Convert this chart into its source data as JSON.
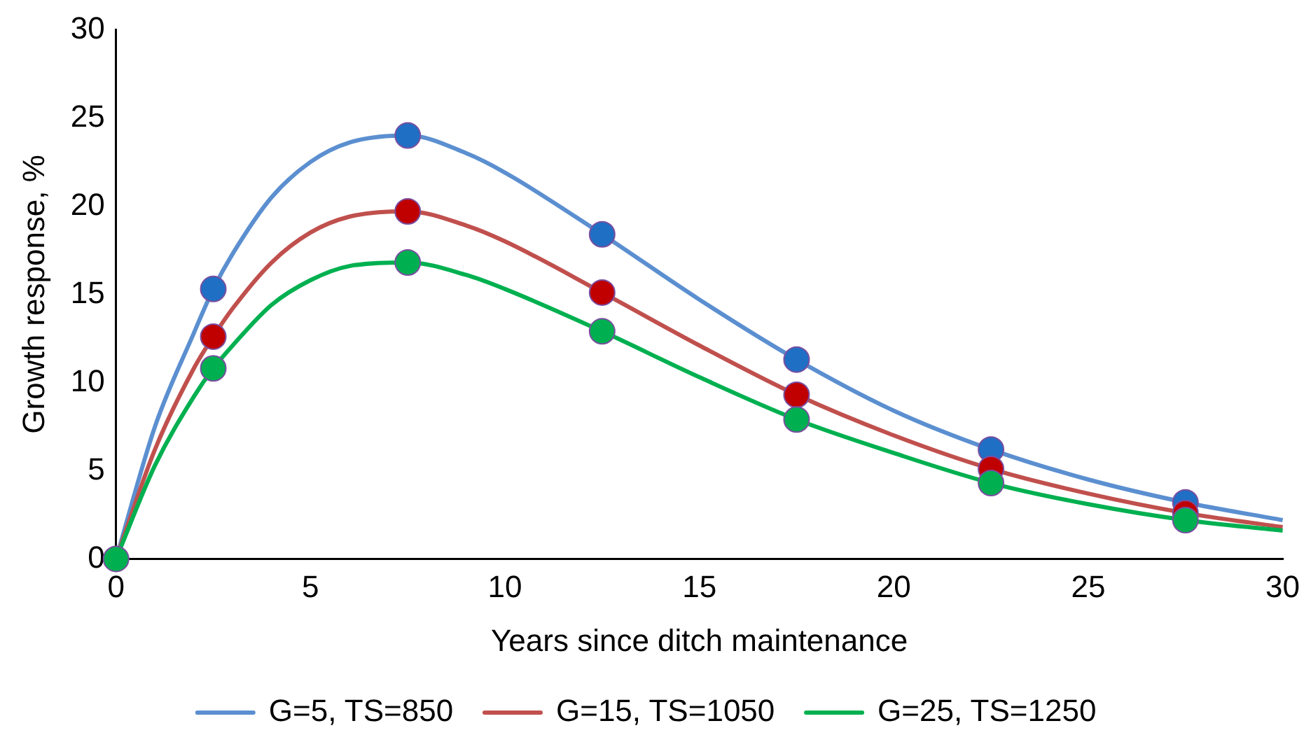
{
  "chart_data": {
    "type": "line",
    "xlabel": "Years since ditch maintenance",
    "ylabel": "Growth response, %",
    "xlim": [
      0,
      30
    ],
    "xticks": [
      0,
      5,
      10,
      15,
      20,
      25,
      30
    ],
    "ylim": [
      0,
      30
    ],
    "yticks": [
      0,
      5,
      10,
      15,
      20,
      25,
      30
    ],
    "grid": false,
    "legend": "bottom",
    "line_style": "solid",
    "series": [
      {
        "name": "G=5, TS=850",
        "color": "#5b8fd0",
        "marker": "none",
        "x": [
          0,
          1,
          2,
          2.5,
          3,
          4,
          5,
          6,
          7.5,
          9,
          10,
          12.5,
          15,
          17.5,
          20,
          22.5,
          25,
          27.5,
          30
        ],
        "values": [
          0,
          7.5,
          12.8,
          15.3,
          17.3,
          20.5,
          22.5,
          23.6,
          24.0,
          23.0,
          21.9,
          18.4,
          14.7,
          11.3,
          8.4,
          6.2,
          4.5,
          3.2,
          2.2
        ]
      },
      {
        "name": "G=15, TS=1050",
        "color": "#c0504d",
        "marker": "none",
        "x": [
          0,
          1,
          2,
          2.5,
          3,
          4,
          5,
          6,
          7.5,
          9,
          10,
          12.5,
          15,
          17.5,
          20,
          22.5,
          25,
          27.5,
          30
        ],
        "values": [
          0,
          6.2,
          10.8,
          12.6,
          14.2,
          16.8,
          18.5,
          19.4,
          19.7,
          18.9,
          18.0,
          15.1,
          12.1,
          9.3,
          7.0,
          5.1,
          3.7,
          2.6,
          1.8
        ]
      },
      {
        "name": "G=25, TS=1250",
        "color": "#00b050",
        "marker": "none",
        "x": [
          0,
          1,
          2,
          2.5,
          3,
          4,
          5,
          6,
          7.5,
          9,
          10,
          12.5,
          15,
          17.5,
          20,
          22.5,
          25,
          27.5,
          30
        ],
        "values": [
          0,
          5.3,
          9.2,
          10.8,
          12.1,
          14.4,
          15.8,
          16.6,
          16.8,
          16.1,
          15.3,
          12.9,
          10.3,
          7.9,
          6.0,
          4.3,
          3.1,
          2.2,
          1.6
        ]
      },
      {
        "type": "scatter",
        "color": "#1f6fc4",
        "marker": "circle",
        "x": [
          2.5,
          7.5,
          12.5,
          17.5,
          22.5,
          27.5
        ],
        "values": [
          15.3,
          24.0,
          18.4,
          11.3,
          6.2,
          3.2
        ]
      },
      {
        "type": "scatter",
        "color": "#c00000",
        "marker": "circle",
        "x": [
          2.5,
          7.5,
          12.5,
          17.5,
          22.5,
          27.5
        ],
        "values": [
          12.6,
          19.7,
          15.1,
          9.3,
          5.1,
          2.6
        ]
      },
      {
        "type": "scatter",
        "color": "#00b050",
        "marker": "circle",
        "x": [
          0,
          2.5,
          7.5,
          12.5,
          17.5,
          22.5,
          27.5
        ],
        "values": [
          0,
          10.8,
          16.8,
          12.9,
          7.9,
          4.3,
          2.2
        ]
      }
    ]
  }
}
